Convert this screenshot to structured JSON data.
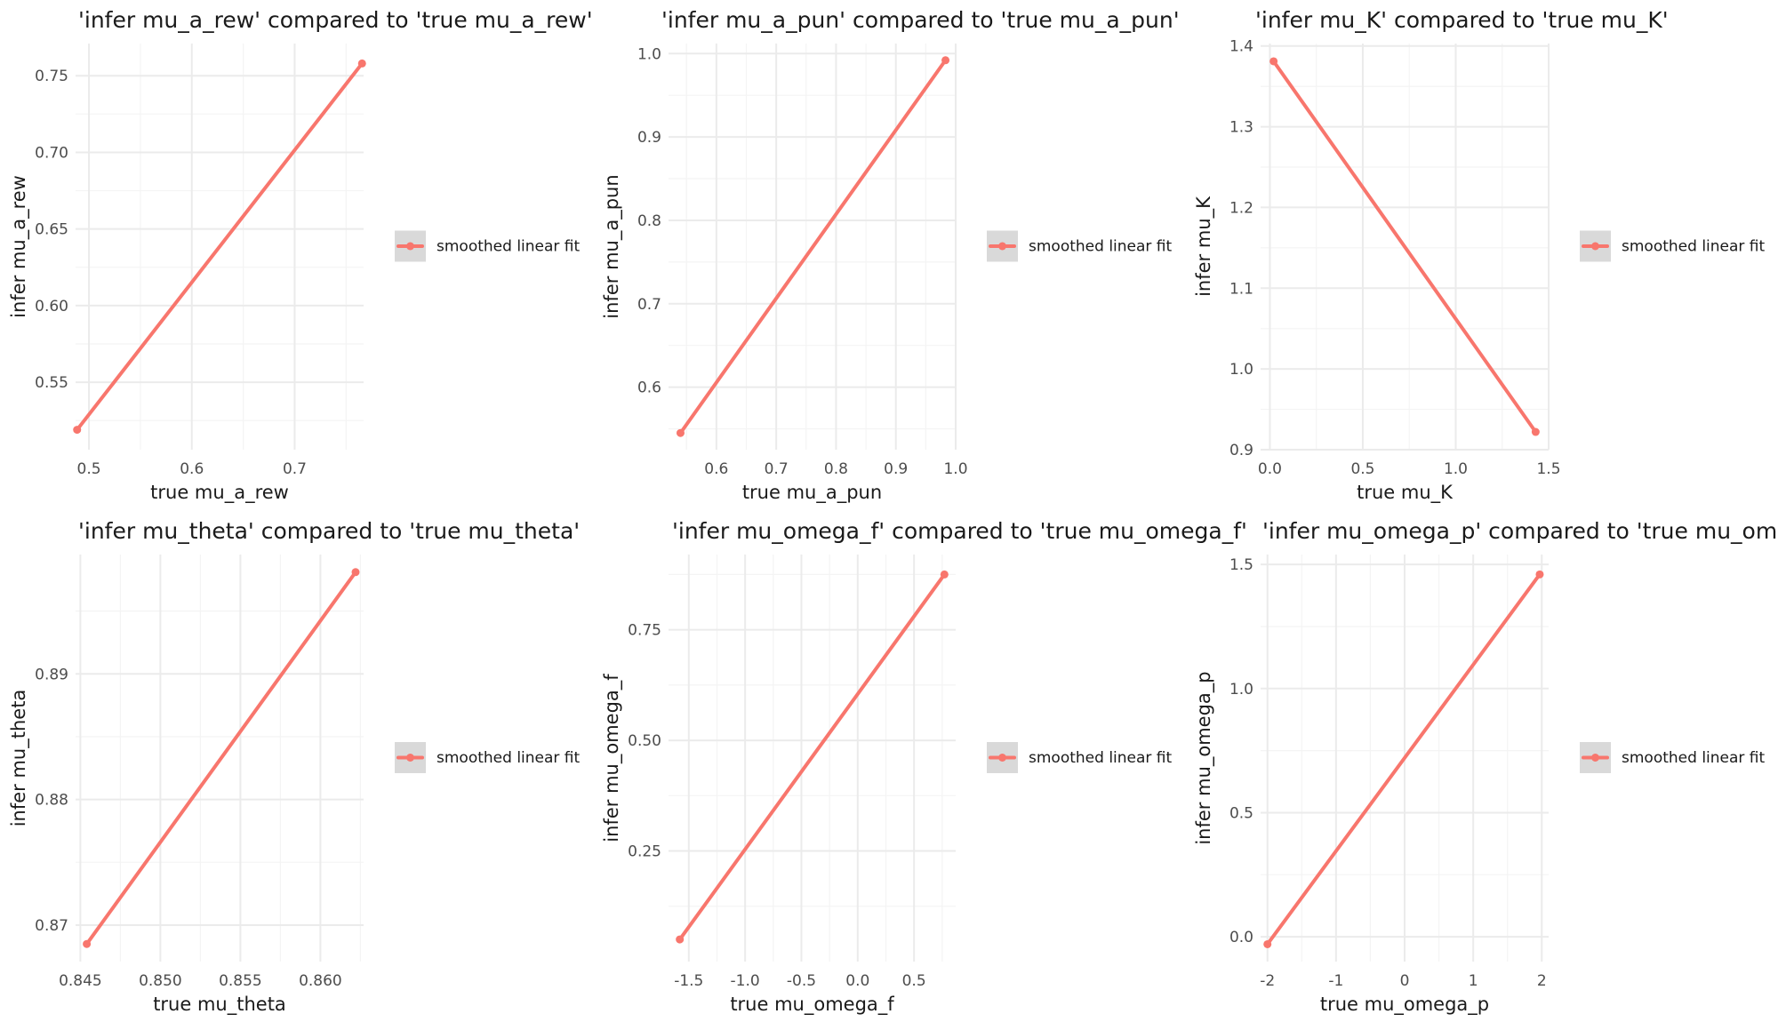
{
  "chart_data": [
    {
      "type": "line",
      "title": "'infer mu_a_rew' compared to 'true mu_a_rew'",
      "xlabel": "true mu_a_rew",
      "ylabel": "infer mu_a_rew",
      "xlim": [
        0.487,
        0.767
      ],
      "ylim": [
        0.506,
        0.771
      ],
      "x_ticks": [
        0.5,
        0.6,
        0.7
      ],
      "x_tick_labels": [
        "0.5",
        "0.6",
        "0.7"
      ],
      "y_ticks": [
        0.55,
        0.6,
        0.65,
        0.7,
        0.75
      ],
      "y_tick_labels": [
        "0.55",
        "0.60",
        "0.65",
        "0.70",
        "0.75"
      ],
      "series": [
        {
          "name": "smoothed linear fit",
          "x": [
            0.4885,
            0.7655
          ],
          "y": [
            0.519,
            0.758
          ]
        }
      ],
      "legend_entries": [
        "smoothed linear fit"
      ],
      "legend": "right",
      "grid": true
    },
    {
      "type": "line",
      "title": "'infer mu_a_pun' compared to 'true mu_a_pun'",
      "xlabel": "true mu_a_pun",
      "ylabel": "infer mu_a_pun",
      "xlim": [
        0.52,
        1.0
      ],
      "ylim": [
        0.525,
        1.012
      ],
      "x_ticks": [
        0.6,
        0.7,
        0.8,
        0.9,
        1.0
      ],
      "x_tick_labels": [
        "0.6",
        "0.7",
        "0.8",
        "0.9",
        "1.0"
      ],
      "y_ticks": [
        0.6,
        0.7,
        0.8,
        0.9,
        1.0
      ],
      "y_tick_labels": [
        "0.6",
        "0.7",
        "0.8",
        "0.9",
        "1.0"
      ],
      "series": [
        {
          "name": "smoothed linear fit",
          "x": [
            0.54,
            0.983
          ],
          "y": [
            0.545,
            0.992
          ]
        }
      ],
      "legend_entries": [
        "smoothed linear fit"
      ],
      "legend": "right",
      "grid": true
    },
    {
      "type": "line",
      "title": "'infer mu_K' compared to 'true mu_K'",
      "xlabel": "true mu_K",
      "ylabel": "infer mu_K",
      "xlim": [
        -0.05,
        1.5
      ],
      "ylim": [
        0.9,
        1.403
      ],
      "x_ticks": [
        0.0,
        0.5,
        1.0,
        1.5
      ],
      "x_tick_labels": [
        "0.0",
        "0.5",
        "1.0",
        "1.5"
      ],
      "y_ticks": [
        0.9,
        1.0,
        1.1,
        1.2,
        1.3,
        1.4
      ],
      "y_tick_labels": [
        "0.9",
        "1.0",
        "1.1",
        "1.2",
        "1.3",
        "1.4"
      ],
      "series": [
        {
          "name": "smoothed linear fit",
          "x": [
            0.02,
            1.43
          ],
          "y": [
            1.381,
            0.922
          ]
        }
      ],
      "legend_entries": [
        "smoothed linear fit"
      ],
      "legend": "right",
      "grid": true
    },
    {
      "type": "line",
      "title": "'infer mu_theta' compared to 'true mu_theta'",
      "xlabel": "true mu_theta",
      "ylabel": "infer mu_theta",
      "xlim": [
        0.8447,
        0.8627
      ],
      "ylim": [
        0.8671,
        0.8995
      ],
      "x_ticks": [
        0.845,
        0.85,
        0.855,
        0.86
      ],
      "x_tick_labels": [
        "0.845",
        "0.850",
        "0.855",
        "0.860"
      ],
      "y_ticks": [
        0.87,
        0.88,
        0.89
      ],
      "y_tick_labels": [
        "0.87",
        "0.88",
        "0.89"
      ],
      "series": [
        {
          "name": "smoothed linear fit",
          "x": [
            0.8454,
            0.8622
          ],
          "y": [
            0.8685,
            0.8981
          ]
        }
      ],
      "legend_entries": [
        "smoothed linear fit"
      ],
      "legend": "right",
      "grid": true
    },
    {
      "type": "line",
      "title": "'infer mu_omega_f' compared to 'true mu_omega_f'",
      "xlabel": "true mu_omega_f",
      "ylabel": "infer mu_omega_f",
      "xlim": [
        -1.68,
        0.87
      ],
      "ylim": [
        0.0,
        0.92
      ],
      "x_ticks": [
        -1.5,
        -1.0,
        -0.5,
        0.0,
        0.5
      ],
      "x_tick_labels": [
        "-1.5",
        "-1.0",
        "-0.5",
        "0.0",
        "0.5"
      ],
      "y_ticks": [
        0.25,
        0.5,
        0.75
      ],
      "y_tick_labels": [
        "0.25",
        "0.50",
        "0.75"
      ],
      "series": [
        {
          "name": "smoothed linear fit",
          "x": [
            -1.58,
            0.77
          ],
          "y": [
            0.05,
            0.875
          ]
        }
      ],
      "legend_entries": [
        "smoothed linear fit"
      ],
      "legend": "right",
      "grid": true
    },
    {
      "type": "line",
      "title": "'infer mu_omega_p' compared to 'true mu_omega_p'",
      "xlabel": "true mu_omega_p",
      "ylabel": "infer mu_omega_p",
      "xlim": [
        -2.1,
        2.1
      ],
      "ylim": [
        -0.1,
        1.54
      ],
      "x_ticks": [
        -2,
        -1,
        0,
        1,
        2
      ],
      "x_tick_labels": [
        "-2",
        "-1",
        "0",
        "1",
        "2"
      ],
      "y_ticks": [
        0.0,
        0.5,
        1.0,
        1.5
      ],
      "y_tick_labels": [
        "0.0",
        "0.5",
        "1.0",
        "1.5"
      ],
      "series": [
        {
          "name": "smoothed linear fit",
          "x": [
            -2.0,
            1.97
          ],
          "y": [
            -0.03,
            1.46
          ]
        }
      ],
      "legend_entries": [
        "smoothed linear fit"
      ],
      "legend": "right",
      "grid": true
    }
  ],
  "colors": {
    "line": "#f8766d",
    "grid_major": "#ebebeb",
    "grid_minor": "#f4f4f4",
    "legend_key_background": "#d9d9d9",
    "text": "#1a1a1a",
    "tick_text": "#4d4d4d"
  }
}
